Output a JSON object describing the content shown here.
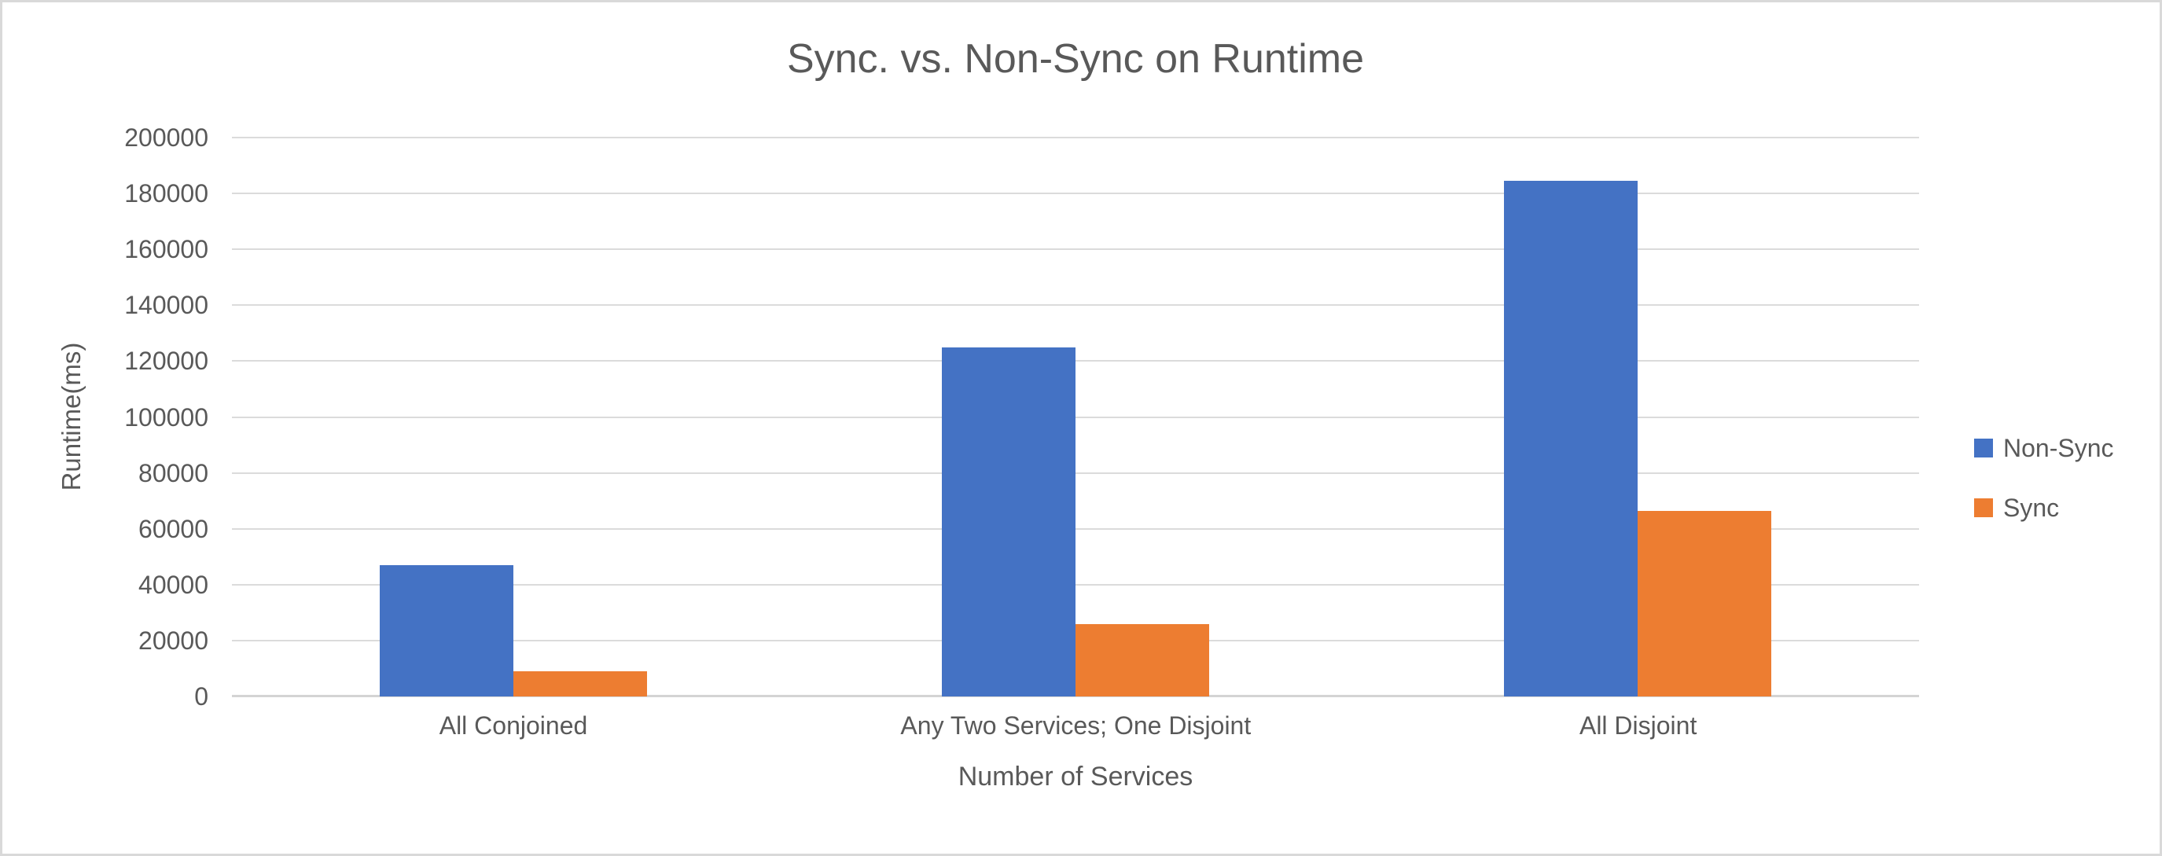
{
  "chart_data": {
    "type": "bar",
    "title": "Sync. vs. Non-Sync on Runtime",
    "xlabel": "Number of Services",
    "ylabel": "Runtime(ms)",
    "categories": [
      "All Conjoined",
      "Any Two Services; One Disjoint",
      "All Disjoint"
    ],
    "series": [
      {
        "name": "Non-Sync",
        "color": "#4472C4",
        "values": [
          47000,
          125000,
          184500
        ]
      },
      {
        "name": "Sync",
        "color": "#ED7D31",
        "values": [
          9000,
          26000,
          66500
        ]
      }
    ],
    "ylim": [
      0,
      200000
    ],
    "ytick_step": 20000,
    "ytick_labels": [
      "0",
      "20000",
      "40000",
      "60000",
      "80000",
      "100000",
      "120000",
      "140000",
      "160000",
      "180000",
      "200000"
    ],
    "grid": true,
    "legend_position": "right"
  },
  "colors": {
    "background": "#FFFFFF",
    "border": "#D9D9D9",
    "gridline": "#DBDBDB",
    "axis_line": "#D4D4D4",
    "text": "#595959",
    "non_sync_bar": "#4472C4",
    "sync_bar": "#ED7D31"
  }
}
